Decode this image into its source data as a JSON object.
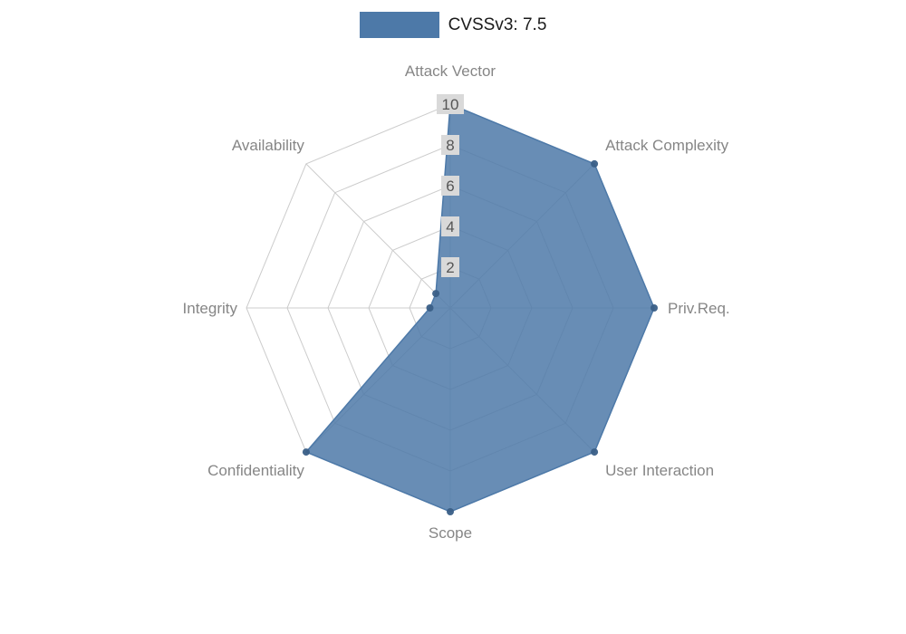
{
  "chart_data": {
    "type": "radar",
    "title": "",
    "legend_position": "top-center",
    "grid": true,
    "categories": [
      "Attack Vector",
      "Attack Complexity",
      "Priv.Req.",
      "User Interaction",
      "Scope",
      "Confidentiality",
      "Integrity",
      "Availability"
    ],
    "series": [
      {
        "name": "CVSSv3: 7.5",
        "values": [
          10,
          10,
          10,
          10,
          10,
          10,
          1,
          1
        ]
      }
    ],
    "radial_ticks": [
      2,
      4,
      6,
      8,
      10
    ],
    "r_max": 10,
    "colors": {
      "fill": "#4d79a8",
      "fill_opacity": 0.85,
      "stroke": "#4d79a8",
      "point": "#3a5f87",
      "grid": "#cccccc",
      "axis_label": "#868686",
      "tick_label": "#555555",
      "tick_box": "#d9d9d9",
      "legend_text": "#1a1a1a",
      "background": "#ffffff"
    }
  }
}
